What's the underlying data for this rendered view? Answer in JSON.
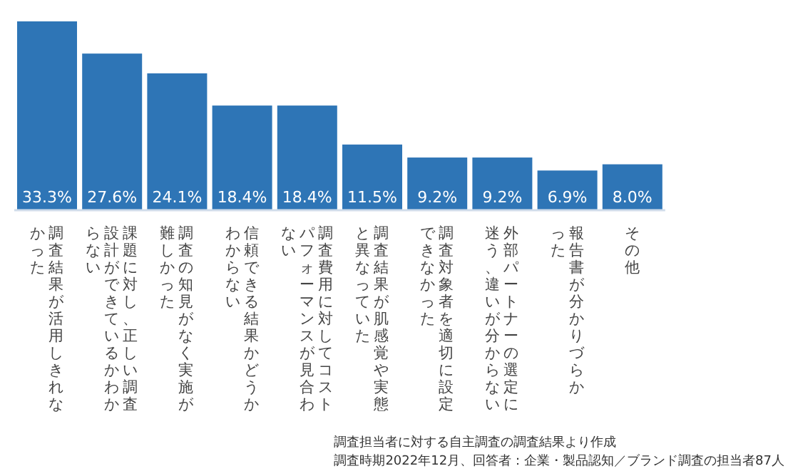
{
  "chart_data": {
    "type": "bar",
    "categories": [
      "調査結果が活用しきれなかった",
      "課題に対し、正しい調査設計ができているかわからない",
      "調査の知見がなく実施が難しかった",
      "信頼できる結果かどうかわからない",
      "調査費用に対してコストパフォーマンスが見合わない",
      "調査結果が肌感覚や実態と異なっていた",
      "調査対象者を適切に設定できなかった",
      "外部パートナーの選定に迷う、違いが分からない",
      "報告書が分かりづらかった",
      "その他"
    ],
    "values": [
      33.3,
      27.6,
      24.1,
      18.4,
      18.4,
      11.5,
      9.2,
      9.2,
      6.9,
      8.0
    ],
    "value_labels": [
      "33.3%",
      "27.6%",
      "24.1%",
      "18.4%",
      "18.4%",
      "11.5%",
      "9.2%",
      "9.2%",
      "6.9%",
      "8.0%"
    ],
    "color": "#2e75b6",
    "annotations": [
      "調査担当者に対する自主調査の調査結果より作成",
      "調査時期2022年12月、回答者：企業・製品認知／ブランド調査の担当者87人"
    ]
  }
}
